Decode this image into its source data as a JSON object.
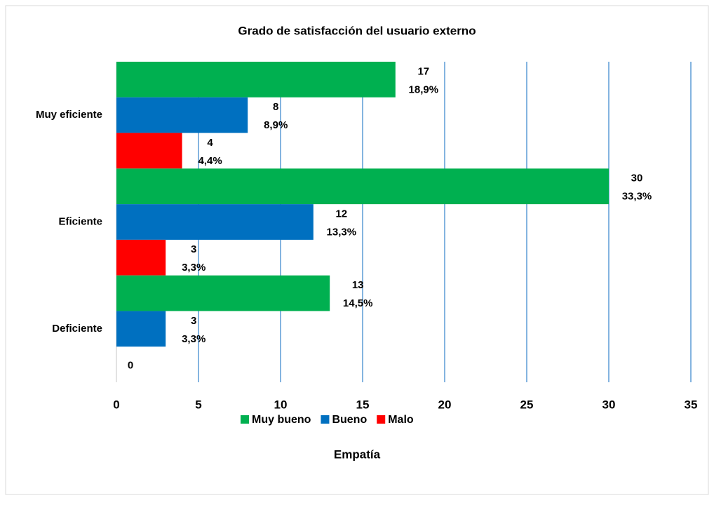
{
  "chart_data": {
    "type": "bar",
    "orientation": "horizontal",
    "title": "Grado de satisfacción del usuario externo",
    "x_label": "Empatía",
    "categories": [
      "Muy eficiente",
      "Eficiente",
      "Deficiente"
    ],
    "series": [
      {
        "name": "Muy bueno",
        "color": "#00b050",
        "values": [
          17,
          30,
          13
        ],
        "percent_labels": [
          "18,9%",
          "33,3%",
          "14,5%"
        ]
      },
      {
        "name": "Bueno",
        "color": "#0070c0",
        "values": [
          8,
          12,
          3
        ],
        "percent_labels": [
          "8,9%",
          "13,3%",
          "3,3%"
        ]
      },
      {
        "name": "Malo",
        "color": "#ff0000",
        "values": [
          4,
          3,
          0
        ],
        "percent_labels": [
          "4,4%",
          "3,3%",
          null
        ]
      }
    ],
    "xlim": [
      0,
      35
    ],
    "xticks": [
      0,
      5,
      10,
      15,
      20,
      25,
      30,
      35
    ],
    "grid": true,
    "grid_color": "#5b9bd5",
    "legend": "bottom"
  }
}
